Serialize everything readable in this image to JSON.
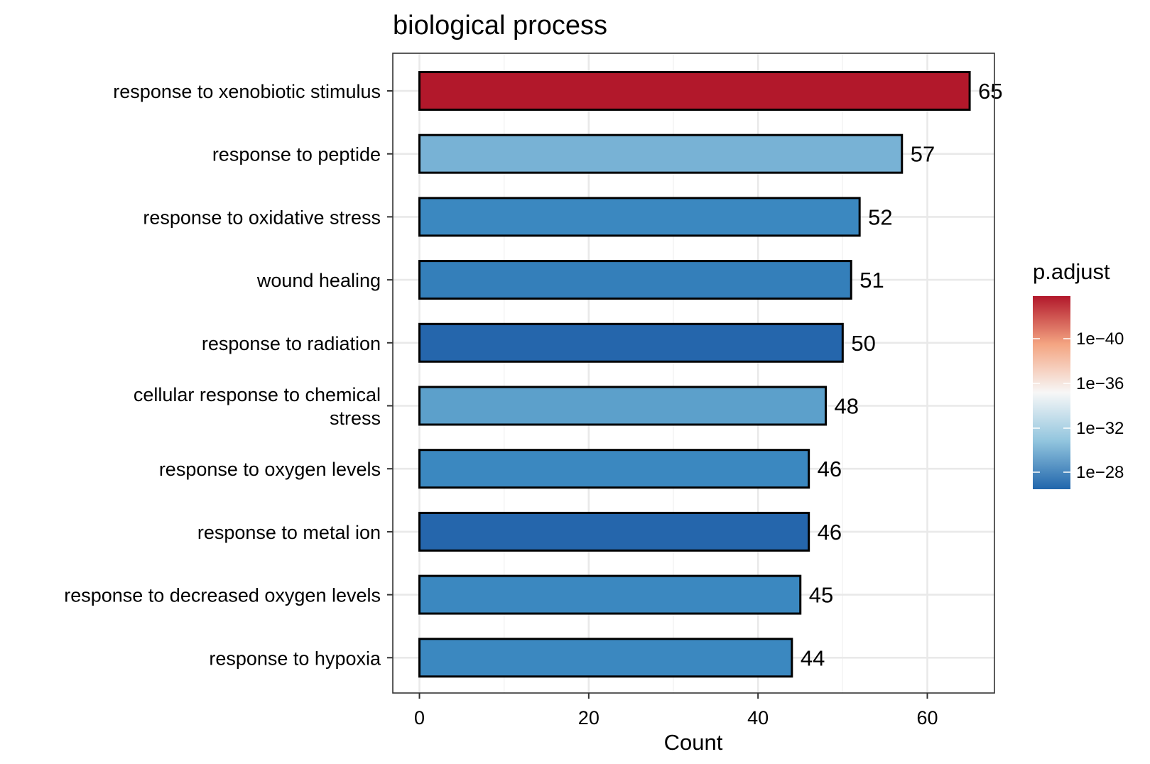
{
  "chart_data": {
    "type": "bar",
    "orientation": "horizontal",
    "title": "biological process",
    "xlabel": "Count",
    "ylabel": "",
    "xlim": [
      0,
      68
    ],
    "xticks": [
      0,
      20,
      40,
      60
    ],
    "grid": true,
    "categories": [
      [
        "response to xenobiotic stimulus"
      ],
      [
        "response to peptide"
      ],
      [
        "response to oxidative stress"
      ],
      [
        "wound healing"
      ],
      [
        "response to radiation"
      ],
      [
        "cellular response to chemical",
        "stress"
      ],
      [
        "response to oxygen levels"
      ],
      [
        "response to metal ion"
      ],
      [
        "response to decreased oxygen levels"
      ],
      [
        "response to hypoxia"
      ]
    ],
    "values": [
      65,
      57,
      52,
      51,
      50,
      48,
      46,
      46,
      45,
      44
    ],
    "value_labels": [
      "65",
      "57",
      "52",
      "51",
      "50",
      "48",
      "46",
      "46",
      "45",
      "44"
    ],
    "bar_colors": [
      "#b2182b",
      "#78b2d5",
      "#3b88c0",
      "#347fba",
      "#2566ac",
      "#5ca0cb",
      "#3b88c0",
      "#2566ac",
      "#3b88c0",
      "#3b88c0"
    ],
    "legend": {
      "title": "p.adjust",
      "position": "right",
      "labels": [
        "1e−40",
        "1e−36",
        "1e−32",
        "1e−28"
      ],
      "gradient": [
        "#b2182b",
        "#f4a582",
        "#f7f7f7",
        "#92c5de",
        "#2166ac"
      ]
    }
  }
}
